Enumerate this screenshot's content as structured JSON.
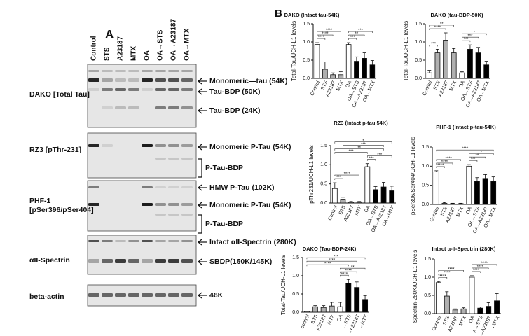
{
  "panel_a": {
    "label": "A",
    "lanes": [
      "Control",
      "STS",
      "A23187",
      "MTX",
      "OA",
      "OA→STS",
      "OA→A23187",
      "OA→MTX"
    ],
    "blots": [
      {
        "antibody": [
          "DAKO [Total Tau]"
        ],
        "bands": [
          "Monomeric—tau (54K)",
          "Tau-BDP (50K)",
          "Tau-BDP (24K)"
        ]
      },
      {
        "antibody": [
          "RZ3 [pThr-231]"
        ],
        "bands": [
          "Monomeric  P-Tau (54K)",
          "P-Tau-BDP"
        ]
      },
      {
        "antibody": [
          "PHF-1",
          "[pSer396/pSer404]"
        ],
        "bands": [
          "HMW P-Tau (102K)",
          "Monomeric  P-Tau (54K)",
          "P-Tau-BDP"
        ]
      },
      {
        "antibody": [
          "αII-Spectrin"
        ],
        "bands": [
          "Intact αII-Spectrin (280K)",
          "SBDP(150K/145K)"
        ]
      },
      {
        "antibody": [
          "beta-actin"
        ],
        "bands": [
          "46K"
        ]
      }
    ]
  },
  "panel_b": {
    "label": "B"
  },
  "chart_data": [
    {
      "type": "bar",
      "title": "DAKO (Intact tau-54K)",
      "y_label": "Total-Tau/UCH-L1 levels",
      "categories": [
        "Control",
        "STS",
        "A23187",
        "MTX",
        "OA",
        "OA→STS",
        "OA→A23187",
        "OA→MTX"
      ],
      "values": [
        0.93,
        0.25,
        0.1,
        0.1,
        0.93,
        0.47,
        0.55,
        0.37
      ],
      "errors": [
        0.05,
        0.2,
        0.05,
        0.08,
        0.05,
        0.12,
        0.15,
        0.12
      ],
      "colors": [
        "#ffffff",
        "#b0b0b0",
        "#b0b0b0",
        "#b0b0b0",
        "#ffffff",
        "#000000",
        "#000000",
        "#000000"
      ],
      "ylim": [
        0,
        1.5
      ],
      "yticks": [
        {
          "value": 0,
          "label": "0.0"
        },
        0.5,
        {
          "value": 1,
          "label": "1.0"
        },
        {
          "value": 1.5,
          "label": "1.5"
        }
      ],
      "annotations": [
        {
          "label": "****",
          "pair": [
            "Control",
            "STS"
          ]
        },
        {
          "label": "****",
          "pair": [
            "Control",
            "A23187"
          ]
        },
        {
          "label": "****",
          "pair": [
            "Control",
            "MTX"
          ]
        },
        {
          "label": "***",
          "pair": [
            "OA",
            "OA→STS"
          ]
        },
        {
          "label": "**",
          "pair": [
            "OA",
            "OA→A23187"
          ]
        },
        {
          "label": "***",
          "pair": [
            "OA",
            "OA→MTX"
          ]
        }
      ]
    },
    {
      "type": "bar",
      "title": "DAKO (tau-BDP-50K)",
      "y_label": "Total-Tau/UCH-L1 levels",
      "categories": [
        "Control",
        "STS",
        "A23187",
        "MTX",
        "OA",
        "OA→STS",
        "OA→A23187",
        "OA→MTX"
      ],
      "values": [
        0.15,
        0.7,
        1.05,
        0.7,
        0.15,
        0.8,
        0.7,
        0.37
      ],
      "errors": [
        0.07,
        0.1,
        0.2,
        0.12,
        0.03,
        0.12,
        0.15,
        0.1
      ],
      "colors": [
        "#ffffff",
        "#b0b0b0",
        "#b0b0b0",
        "#b0b0b0",
        "#ffffff",
        "#000000",
        "#000000",
        "#000000"
      ],
      "ylim": [
        0,
        1.5
      ],
      "yticks": [
        {
          "value": 0,
          "label": "0.0"
        },
        0.5,
        {
          "value": 1,
          "label": "1.0"
        },
        {
          "value": 1.5,
          "label": "1.5"
        }
      ],
      "annotations": [
        {
          "label": "***",
          "pair": [
            "Control",
            "STS"
          ]
        },
        {
          "label": "****",
          "pair": [
            "Control",
            "A23187"
          ]
        },
        {
          "label": "**",
          "pair": [
            "Control",
            "MTX"
          ]
        },
        {
          "label": "***",
          "pair": [
            "OA",
            "OA→STS"
          ]
        },
        {
          "label": "***",
          "pair": [
            "OA",
            "OA→A23187"
          ]
        },
        {
          "label": "*",
          "pair": [
            "OA",
            "OA→MTX"
          ]
        }
      ]
    },
    {
      "type": "bar",
      "title": "RZ3 (Intact p-tau 54K)",
      "y_label": "pThr231/UCH-L1 levels",
      "categories": [
        "Control",
        "STS",
        "A23187",
        "MTX",
        "OA",
        "OA→STS",
        "OA→A23187",
        "OA→MTX"
      ],
      "values": [
        0.38,
        0.1,
        0.02,
        0.02,
        0.95,
        0.35,
        0.42,
        0.32
      ],
      "errors": [
        0.15,
        0.05,
        0.02,
        0.02,
        0.08,
        0.08,
        0.12,
        0.12
      ],
      "colors": [
        "#ffffff",
        "#b0b0b0",
        "#b0b0b0",
        "#b0b0b0",
        "#ffffff",
        "#000000",
        "#000000",
        "#000000"
      ],
      "ylim": [
        0,
        1.5
      ],
      "yticks": [
        {
          "value": 0,
          "label": "0.0"
        },
        0.5,
        {
          "value": 1,
          "label": "1.0"
        },
        {
          "value": 1.5,
          "label": "1.5"
        }
      ],
      "annotations": [
        {
          "label": "***",
          "pair": [
            "Control",
            "STS"
          ]
        },
        {
          "label": "****",
          "pair": [
            "Control",
            "MTX"
          ]
        },
        {
          "label": "***",
          "pair": [
            "OA",
            "OA→STS"
          ]
        },
        {
          "label": "***",
          "pair": [
            "OA",
            "OA→MTX"
          ]
        },
        {
          "label": "***",
          "pair": [
            "Control",
            "OA"
          ]
        },
        {
          "label": "**",
          "pair": [
            "Control",
            "OA→A23187"
          ]
        },
        {
          "label": "***",
          "pair": [
            "STS",
            "OA→A23187"
          ]
        },
        {
          "label": "*",
          "pair": [
            "Control",
            "OA→MTX"
          ]
        }
      ]
    },
    {
      "type": "bar",
      "title": "PHF-1 (Intact p-tau-54K)",
      "y_label": "pSer396/Ser404/UCH-L1 levels",
      "categories": [
        "Control",
        "STS",
        "A23187",
        "MTX",
        "OA",
        "OA→STS",
        "OA→A23187",
        "OA→MTX"
      ],
      "values": [
        0.85,
        0.03,
        0.02,
        0.02,
        1.0,
        0.6,
        0.68,
        0.6
      ],
      "errors": [
        0.03,
        0.02,
        0.01,
        0.01,
        0.04,
        0.1,
        0.1,
        0.12
      ],
      "colors": [
        "#ffffff",
        "#b0b0b0",
        "#b0b0b0",
        "#b0b0b0",
        "#ffffff",
        "#000000",
        "#000000",
        "#000000"
      ],
      "ylim": [
        0,
        1.5
      ],
      "yticks": [
        {
          "value": 0,
          "label": "0.0"
        },
        0.5,
        {
          "value": 1,
          "label": "1.0"
        },
        {
          "value": 1.5,
          "label": "1.5"
        }
      ],
      "annotations": [
        {
          "label": "****",
          "pair": [
            "Control",
            "STS"
          ]
        },
        {
          "label": "****",
          "pair": [
            "Control",
            "A23187"
          ]
        },
        {
          "label": "****",
          "pair": [
            "Control",
            "MTX"
          ]
        },
        {
          "label": "***",
          "pair": [
            "OA",
            "OA→STS"
          ]
        },
        {
          "label": "**",
          "pair": [
            "OA",
            "OA→A23187"
          ]
        },
        {
          "label": "*",
          "pair": [
            "OA",
            "OA→MTX"
          ]
        },
        {
          "label": "****",
          "pair": [
            "Control",
            "OA→MTX"
          ]
        }
      ]
    },
    {
      "type": "bar",
      "title": "DAKO (Tau-BDP-24K)",
      "y_label": "Total-Tau/UCH-L1 levels",
      "categories": [
        "control",
        "STS",
        "A23187",
        "MTX",
        "OA",
        "→STS",
        "→A23187",
        "→MTX"
      ],
      "values": [
        0.02,
        0.15,
        0.13,
        0.17,
        0.15,
        0.8,
        0.68,
        0.35
      ],
      "errors": [
        0.01,
        0.03,
        0.05,
        0.1,
        0.12,
        0.1,
        0.15,
        0.1
      ],
      "colors": [
        "#ffffff",
        "#b0b0b0",
        "#b0b0b0",
        "#b0b0b0",
        "#ffffff",
        "#000000",
        "#000000",
        "#000000"
      ],
      "ylim": [
        0,
        1.5
      ],
      "yticks": [
        {
          "value": 0,
          "label": "0.0"
        },
        0.5,
        {
          "value": 1,
          "label": "1.0"
        },
        {
          "value": 1.5,
          "label": "1.5"
        }
      ],
      "annotations": [
        {
          "label": "****",
          "pair": [
            "OA",
            "→STS"
          ]
        },
        {
          "label": "****",
          "pair": [
            "OA",
            "→A23187"
          ]
        },
        {
          "label": "**",
          "pair": [
            "OA",
            "→MTX"
          ]
        },
        {
          "label": "****",
          "pair": [
            "control",
            "→STS"
          ]
        },
        {
          "label": "****",
          "pair": [
            "control",
            "→A23187"
          ]
        },
        {
          "label": "***",
          "pair": [
            "control",
            "→MTX"
          ]
        }
      ]
    },
    {
      "type": "bar",
      "title": "Intact α-II-Spectrin (280K)",
      "y_label": "Spectrin-280K/UCH-L1 levels",
      "categories": [
        "Control",
        "STS",
        "A23187",
        "MTX",
        "OA",
        "A→STS",
        "→A23187",
        "→MTX"
      ],
      "values": [
        0.85,
        0.48,
        0.1,
        0.13,
        1.0,
        0.15,
        0.2,
        0.35
      ],
      "errors": [
        0.03,
        0.12,
        0.03,
        0.03,
        0.04,
        0.03,
        0.1,
        0.2
      ],
      "colors": [
        "#ffffff",
        "#b0b0b0",
        "#b0b0b0",
        "#b0b0b0",
        "#ffffff",
        "#000000",
        "#000000",
        "#000000"
      ],
      "ylim": [
        0,
        1.5
      ],
      "yticks": [
        {
          "value": 0,
          "label": "0.0"
        },
        0.5,
        {
          "value": 1,
          "label": "1.0"
        },
        {
          "value": 1.5,
          "label": "1.5"
        }
      ],
      "annotations": [
        {
          "label": "****",
          "pair": [
            "Control",
            "STS"
          ]
        },
        {
          "label": "****",
          "pair": [
            "Control",
            "A23187"
          ]
        },
        {
          "label": "****",
          "pair": [
            "Control",
            "MTX"
          ]
        },
        {
          "label": "****",
          "pair": [
            "OA",
            "A→STS"
          ]
        },
        {
          "label": "****",
          "pair": [
            "OA",
            "→A23187"
          ]
        },
        {
          "label": "****",
          "pair": [
            "OA",
            "→MTX"
          ]
        }
      ]
    }
  ]
}
